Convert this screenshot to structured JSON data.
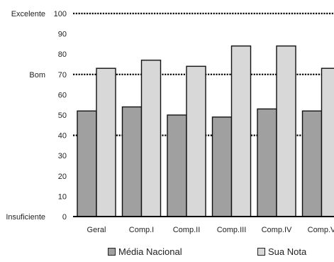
{
  "chart_data": {
    "type": "bar",
    "categories": [
      "Geral",
      "Comp.I",
      "Comp.II",
      "Comp.III",
      "Comp.IV",
      "Comp.V"
    ],
    "series": [
      {
        "name": "Média Nacional",
        "values": [
          52,
          54,
          50,
          49,
          53,
          52
        ],
        "color": "#a0a0a0"
      },
      {
        "name": "Sua Nota",
        "values": [
          73,
          77,
          74,
          84,
          84,
          73
        ],
        "color": "#d8d8d8"
      }
    ],
    "yticks": [
      0,
      10,
      20,
      30,
      40,
      50,
      60,
      70,
      80,
      90,
      100
    ],
    "ylim": [
      0,
      100
    ],
    "reference_lines": [
      {
        "value": 100,
        "label": "Excelente"
      },
      {
        "value": 70,
        "label": "Bom"
      },
      {
        "value": 40,
        "label": ""
      },
      {
        "value": 0,
        "label": "Insuficiente"
      }
    ],
    "legend_position": "bottom",
    "grid": false
  }
}
